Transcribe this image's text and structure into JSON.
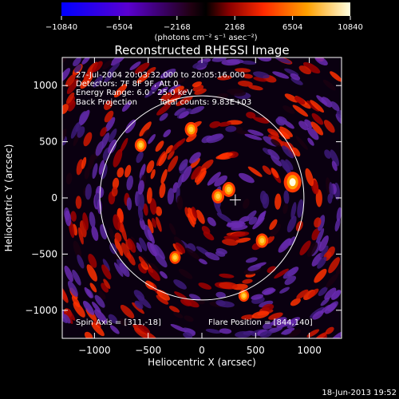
{
  "chart_data": {
    "type": "heatmap",
    "title": "Reconstructed RHESSI Image",
    "xlabel": "Heliocentric X (arcsec)",
    "ylabel": "Heliocentric Y (arcsec)",
    "xlim": [
      -1300,
      1300
    ],
    "ylim": [
      -1250,
      1250
    ],
    "x_ticks": [
      -1000,
      -500,
      0,
      500,
      1000
    ],
    "y_ticks": [
      -1000,
      -500,
      0,
      500,
      1000
    ],
    "colorbar": {
      "range": [
        -10840,
        10840
      ],
      "ticks": [
        "−10840",
        "−6504",
        "−2168",
        "2168",
        "6504",
        "10840"
      ],
      "unit_label": "(photons cm⁻² s⁻¹ asec⁻²)"
    },
    "annotations": {
      "time": "27-Jul-2004 20:03:32.000 to 20:05:16.000",
      "detectors": "Detectors: 7F 8F 9F, Att 0",
      "energy": "Energy Range: 6.0 - 25.0 keV",
      "method": "Back Projection",
      "counts": "Total counts: 9.83E+03",
      "spin_axis": "Spin Axis = [311,-18]",
      "flare_position": "Flare Position = [844,140]"
    },
    "spin_axis": [
      311,
      -18
    ],
    "flare_position": [
      844,
      140
    ],
    "solar_radius": 950,
    "peaks": [
      {
        "x": 844,
        "y": 140,
        "value": 10840
      },
      {
        "x": 250,
        "y": 75,
        "value": 7000
      },
      {
        "x": 150,
        "y": 15,
        "value": 6500
      },
      {
        "x": -100,
        "y": 610,
        "value": 6800
      },
      {
        "x": -570,
        "y": 470,
        "value": 6000
      },
      {
        "x": 560,
        "y": -380,
        "value": 6500
      },
      {
        "x": -250,
        "y": -530,
        "value": 5500
      },
      {
        "x": 390,
        "y": -870,
        "value": 5000
      }
    ]
  },
  "footer": {
    "date": "18-Jun-2013 19:52"
  }
}
